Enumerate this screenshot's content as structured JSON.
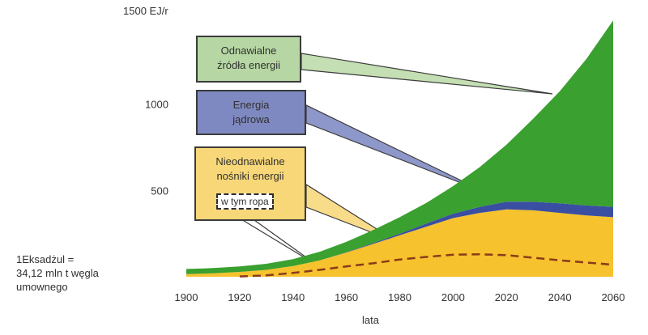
{
  "chart_data": {
    "type": "area",
    "title": "",
    "xlabel": "lata",
    "ylabel": "",
    "y_unit_label": "1500 EJ/r",
    "x_ticks": [
      "1900",
      "1920",
      "1940",
      "1960",
      "1980",
      "2000",
      "2020",
      "2040",
      "2060"
    ],
    "y_ticks": [
      "1000",
      "500"
    ],
    "xlim": [
      1900,
      2060
    ],
    "ylim": [
      0,
      1500
    ],
    "grid": false,
    "legend": "callouts",
    "x": [
      1900,
      1910,
      1920,
      1930,
      1940,
      1950,
      1960,
      1970,
      1980,
      1990,
      2000,
      2010,
      2020,
      2030,
      2040,
      2050,
      2060
    ],
    "series": [
      {
        "name": "Nieodnawialne nośniki energii",
        "color": "#f6c22d",
        "values": [
          15,
          20,
          28,
          40,
          62,
          95,
          140,
          190,
          240,
          290,
          340,
          370,
          390,
          385,
          370,
          355,
          345
        ]
      },
      {
        "name": "Energia jądrowa",
        "color": "#3a4fa2",
        "values": [
          0,
          0,
          0,
          0,
          0,
          0,
          2,
          5,
          10,
          18,
          25,
          35,
          45,
          50,
          55,
          58,
          60
        ]
      },
      {
        "name": "Odnawialne źródła energii",
        "color": "#3aa02f",
        "values": [
          30,
          30,
          32,
          35,
          40,
          50,
          60,
          75,
          95,
          120,
          160,
          230,
          330,
          480,
          650,
          850,
          1080
        ]
      }
    ],
    "oil": {
      "name": "w tym ropa",
      "color": "#8b3a1a",
      "values": [
        0,
        0,
        2,
        8,
        22,
        40,
        60,
        78,
        100,
        115,
        128,
        130,
        125,
        110,
        95,
        82,
        70
      ]
    }
  },
  "callouts": {
    "renewable": [
      "Odnawialne",
      "źródła energii"
    ],
    "nuclear": [
      "Energia",
      "jądrowa"
    ],
    "nonrenewable": [
      "Nieodnawialne",
      "nośniki energii"
    ],
    "oil": "w tym ropa"
  },
  "note": [
    "1Eksadżul =",
    "34,12 mln t węgla",
    "umownego"
  ],
  "colors": {
    "renewable_box": "#b6d7a3",
    "nuclear_box": "#7f89c1",
    "nonrenewable_box": "#f8d778",
    "callout_renewable_pointer": "#c4dfb3",
    "callout_nuclear_pointer": "#8e97c9",
    "callout_nonrenewable_pointer": "#f9dc8a"
  }
}
